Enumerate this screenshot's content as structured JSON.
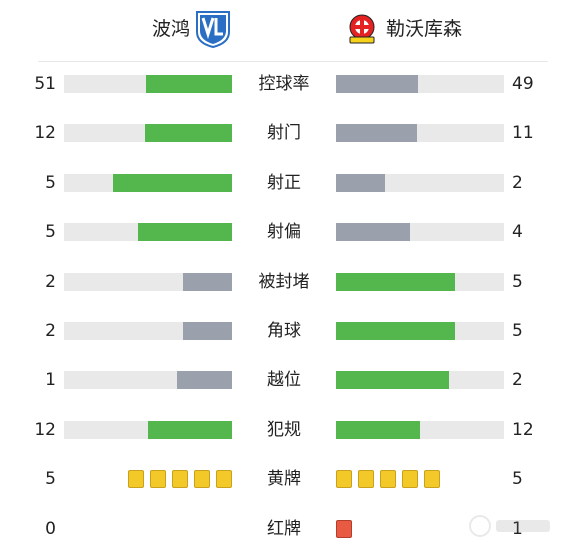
{
  "teams": {
    "home": {
      "name": "波鸿",
      "crest_colors": {
        "primary": "#2a6fc4",
        "secondary": "#ffffff"
      }
    },
    "away": {
      "name": "勒沃库森",
      "crest_colors": {
        "primary": "#e32221",
        "secondary": "#f6d11a"
      }
    }
  },
  "colors": {
    "home_bar": "#53b74d",
    "neutral_bar": "#9aa1ad",
    "track": "#e9e9e9",
    "yellow_card": "#f3c929",
    "red_card": "#e95a43"
  },
  "stats": [
    {
      "label": "控球率",
      "home": "51",
      "away": "49",
      "home_ratio": 0.51,
      "away_ratio": 0.49,
      "home_color": "green",
      "away_color": "gray"
    },
    {
      "label": "射门",
      "home": "12",
      "away": "11",
      "home_ratio": 0.52,
      "away_ratio": 0.48,
      "home_color": "green",
      "away_color": "gray"
    },
    {
      "label": "射正",
      "home": "5",
      "away": "2",
      "home_ratio": 0.71,
      "away_ratio": 0.29,
      "home_color": "green",
      "away_color": "gray"
    },
    {
      "label": "射偏",
      "home": "5",
      "away": "4",
      "home_ratio": 0.56,
      "away_ratio": 0.44,
      "home_color": "green",
      "away_color": "gray"
    },
    {
      "label": "被封堵",
      "home": "2",
      "away": "5",
      "home_ratio": 0.29,
      "away_ratio": 0.71,
      "home_color": "gray",
      "away_color": "green"
    },
    {
      "label": "角球",
      "home": "2",
      "away": "5",
      "home_ratio": 0.29,
      "away_ratio": 0.71,
      "home_color": "gray",
      "away_color": "green"
    },
    {
      "label": "越位",
      "home": "1",
      "away": "2",
      "home_ratio": 0.33,
      "away_ratio": 0.67,
      "home_color": "gray",
      "away_color": "green"
    },
    {
      "label": "犯规",
      "home": "12",
      "away": "12",
      "home_ratio": 0.5,
      "away_ratio": 0.5,
      "home_color": "green",
      "away_color": "green"
    }
  ],
  "cards": [
    {
      "label": "黄牌",
      "home": "5",
      "away": "5",
      "home_count": 5,
      "away_count": 5,
      "kind": "yellow"
    },
    {
      "label": "红牌",
      "home": "0",
      "away": "1",
      "home_count": 0,
      "away_count": 1,
      "kind": "red"
    }
  ]
}
